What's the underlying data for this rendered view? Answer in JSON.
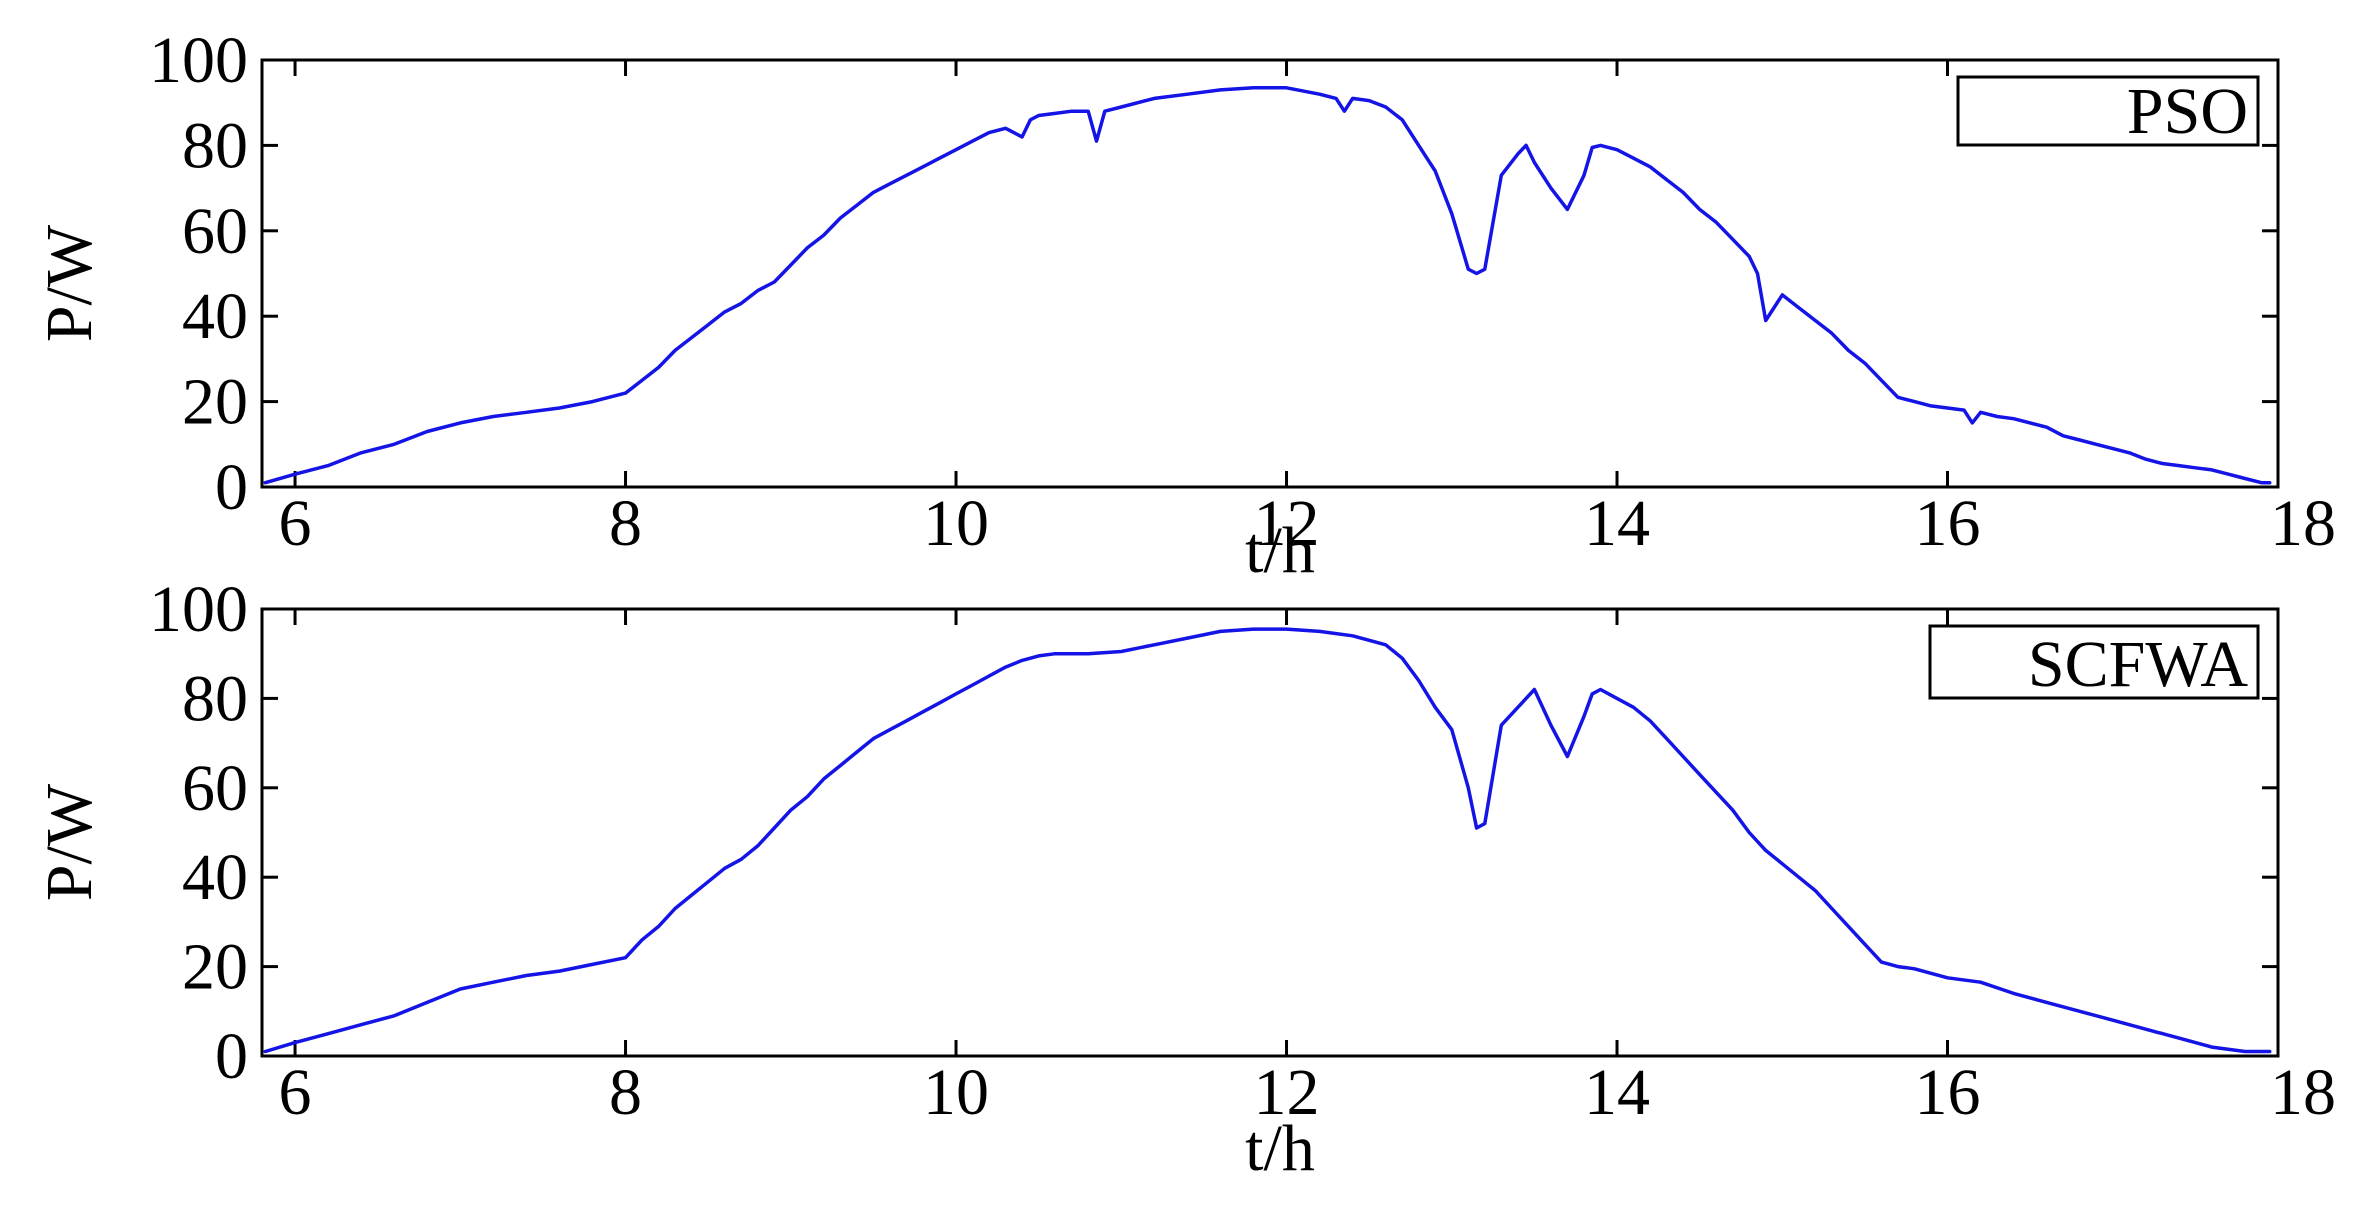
{
  "colors": {
    "series": "#1414e6",
    "axis": "#000000",
    "background": "#ffffff"
  },
  "chart_data": [
    {
      "type": "line",
      "xlabel": "t/h",
      "ylabel": "P/W",
      "xlim": [
        5.8,
        18
      ],
      "ylim": [
        0,
        100
      ],
      "xticks": [
        6,
        8,
        10,
        12,
        14,
        16,
        18
      ],
      "yticks": [
        0,
        20,
        40,
        60,
        80,
        100
      ],
      "grid": false,
      "legend": "top-right",
      "series": [
        {
          "name": "PSO",
          "x": [
            5.82,
            6.0,
            6.2,
            6.4,
            6.6,
            6.8,
            7.0,
            7.2,
            7.4,
            7.6,
            7.8,
            8.0,
            8.1,
            8.2,
            8.3,
            8.4,
            8.5,
            8.6,
            8.7,
            8.8,
            8.9,
            9.0,
            9.1,
            9.2,
            9.3,
            9.4,
            9.5,
            9.6,
            9.7,
            9.8,
            9.9,
            10.0,
            10.1,
            10.2,
            10.3,
            10.4,
            10.45,
            10.5,
            10.6,
            10.7,
            10.8,
            10.85,
            10.9,
            11.0,
            11.2,
            11.4,
            11.6,
            11.8,
            12.0,
            12.2,
            12.3,
            12.35,
            12.4,
            12.5,
            12.6,
            12.7,
            12.8,
            12.9,
            13.0,
            13.1,
            13.15,
            13.2,
            13.3,
            13.4,
            13.45,
            13.5,
            13.6,
            13.7,
            13.8,
            13.85,
            13.9,
            14.0,
            14.1,
            14.2,
            14.3,
            14.4,
            14.5,
            14.6,
            14.7,
            14.8,
            14.85,
            14.9,
            15.0,
            15.1,
            15.2,
            15.3,
            15.4,
            15.5,
            15.6,
            15.7,
            15.8,
            15.9,
            16.0,
            16.1,
            16.15,
            16.2,
            16.3,
            16.4,
            16.5,
            16.6,
            16.7,
            16.8,
            16.9,
            17.0,
            17.1,
            17.2,
            17.3,
            17.4,
            17.5,
            17.6,
            17.7,
            17.8,
            17.9,
            17.95
          ],
          "y": [
            1,
            3,
            5,
            8,
            10,
            13,
            15,
            16.5,
            17.5,
            18.5,
            20,
            22,
            25,
            28,
            32,
            35,
            38,
            41,
            43,
            46,
            48,
            52,
            56,
            59,
            63,
            66,
            69,
            71,
            73,
            75,
            77,
            79,
            81,
            83,
            84,
            82,
            86,
            87,
            87.5,
            88,
            88,
            81,
            88,
            89,
            91,
            92,
            93,
            93.5,
            93.5,
            92,
            91,
            88,
            91,
            90.5,
            89,
            86,
            80,
            74,
            64,
            51,
            50,
            51,
            73,
            78,
            80,
            76,
            70,
            65,
            73,
            79.5,
            80,
            79,
            77,
            75,
            72,
            69,
            65,
            62,
            58,
            54,
            50,
            39,
            45,
            42,
            39,
            36,
            32,
            29,
            25,
            21,
            20,
            19,
            18.5,
            18,
            15,
            17.5,
            16.5,
            16,
            15,
            14,
            12,
            11,
            10,
            9,
            8,
            6.5,
            5.5,
            5,
            4.5,
            4,
            3,
            2,
            1,
            1
          ]
        }
      ]
    },
    {
      "type": "line",
      "xlabel": "t/h",
      "ylabel": "P/W",
      "xlim": [
        5.8,
        18
      ],
      "ylim": [
        0,
        100
      ],
      "xticks": [
        6,
        8,
        10,
        12,
        14,
        16,
        18
      ],
      "yticks": [
        0,
        20,
        40,
        60,
        80,
        100
      ],
      "grid": false,
      "legend": "top-right",
      "series": [
        {
          "name": "SCFWA",
          "x": [
            5.82,
            6.0,
            6.2,
            6.4,
            6.6,
            6.8,
            7.0,
            7.2,
            7.4,
            7.6,
            7.8,
            8.0,
            8.1,
            8.2,
            8.3,
            8.4,
            8.5,
            8.6,
            8.7,
            8.8,
            8.9,
            9.0,
            9.1,
            9.2,
            9.3,
            9.4,
            9.5,
            9.6,
            9.7,
            9.8,
            9.9,
            10.0,
            10.1,
            10.2,
            10.3,
            10.4,
            10.5,
            10.6,
            10.8,
            11.0,
            11.2,
            11.4,
            11.6,
            11.8,
            12.0,
            12.2,
            12.4,
            12.6,
            12.7,
            12.8,
            12.9,
            13.0,
            13.1,
            13.15,
            13.2,
            13.3,
            13.4,
            13.5,
            13.6,
            13.7,
            13.8,
            13.85,
            13.9,
            14.0,
            14.1,
            14.2,
            14.3,
            14.4,
            14.5,
            14.6,
            14.7,
            14.8,
            14.9,
            15.0,
            15.1,
            15.2,
            15.3,
            15.4,
            15.5,
            15.6,
            15.7,
            15.8,
            15.9,
            16.0,
            16.2,
            16.4,
            16.6,
            16.8,
            17.0,
            17.2,
            17.4,
            17.6,
            17.8,
            17.95
          ],
          "y": [
            1,
            3,
            5,
            7,
            9,
            12,
            15,
            16.5,
            18,
            19,
            20.5,
            22,
            26,
            29,
            33,
            36,
            39,
            42,
            44,
            47,
            51,
            55,
            58,
            62,
            65,
            68,
            71,
            73,
            75,
            77,
            79,
            81,
            83,
            85,
            87,
            88.5,
            89.5,
            90,
            90,
            90.5,
            92,
            93.5,
            95,
            95.5,
            95.5,
            95,
            94,
            92,
            89,
            84,
            78,
            73,
            60,
            51,
            52,
            74,
            78,
            82,
            74,
            67,
            76,
            81,
            82,
            80,
            78,
            75,
            71,
            67,
            63,
            59,
            55,
            50,
            46,
            43,
            40,
            37,
            33,
            29,
            25,
            21,
            20,
            19.5,
            18.5,
            17.5,
            16.5,
            14,
            12,
            10,
            8,
            6,
            4,
            2,
            1,
            1
          ]
        }
      ]
    }
  ]
}
